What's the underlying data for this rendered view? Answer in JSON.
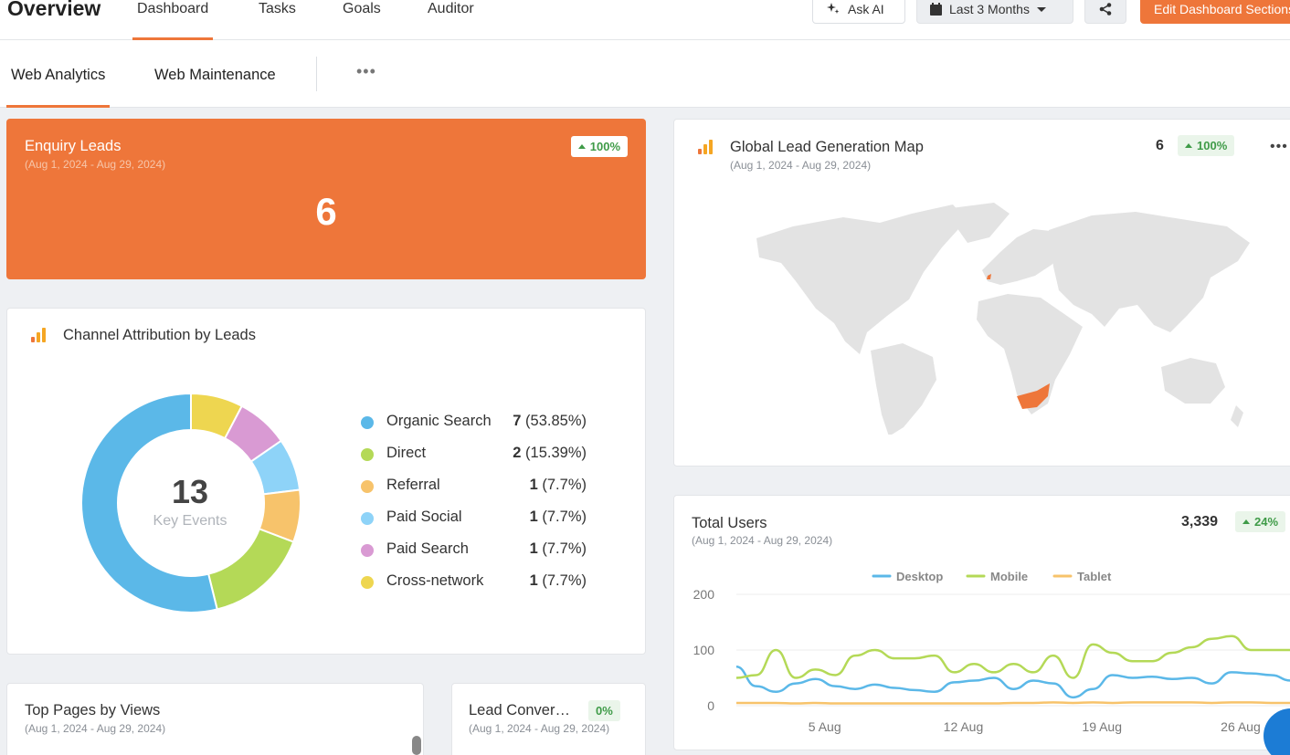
{
  "header": {
    "title": "Overview",
    "tabs": [
      {
        "label": "Dashboard",
        "active": true
      },
      {
        "label": "Tasks",
        "active": false
      },
      {
        "label": "Goals",
        "active": false
      },
      {
        "label": "Auditor",
        "active": false
      }
    ],
    "ask_ai": "Ask AI",
    "date_range": "Last 3 Months",
    "edit_label": "Edit Dashboard Sections"
  },
  "subtabs": [
    {
      "label": "Web Analytics",
      "active": true
    },
    {
      "label": "Web Maintenance",
      "active": false
    }
  ],
  "enquiry": {
    "title": "Enquiry Leads",
    "range": "(Aug 1, 2024 - Aug 29, 2024)",
    "value": "6",
    "change": "100%"
  },
  "channel": {
    "title": "Channel Attribution by Leads",
    "total": "13",
    "total_label": "Key Events"
  },
  "map": {
    "title": "Global Lead Generation Map",
    "range": "(Aug 1, 2024 - Aug 29, 2024)",
    "value": "6",
    "change": "100%"
  },
  "users": {
    "title": "Total Users",
    "range": "(Aug 1, 2024 - Aug 29, 2024)",
    "value": "3,339",
    "change": "24%"
  },
  "top_pages": {
    "title": "Top Pages by Views",
    "range": "(Aug 1, 2024 - Aug 29, 2024)"
  },
  "lead_conv": {
    "title": "Lead Conver…",
    "range": "(Aug 1, 2024 - Aug 29, 2024)",
    "change": "0%"
  },
  "colors": {
    "accent": "#ee763a",
    "up_green": "#3f9b48",
    "organic": "#5bb8e8",
    "direct": "#b4d957",
    "referral": "#f7c36b",
    "paid_social": "#8ed3f8",
    "paid_search": "#d99ad3",
    "cross_network": "#eed650"
  },
  "chart_data": [
    {
      "type": "pie",
      "series": [
        {
          "name": "Organic Search",
          "value": 7,
          "label": "(53.85%)"
        },
        {
          "name": "Direct",
          "value": 2,
          "label": "(15.39%)"
        },
        {
          "name": "Referral",
          "value": 1,
          "label": "(7.7%)"
        },
        {
          "name": "Paid Social",
          "value": 1,
          "label": "(7.7%)"
        },
        {
          "name": "Paid Search",
          "value": 1,
          "label": "(7.7%)"
        },
        {
          "name": "Cross-network",
          "value": 1,
          "label": "(7.7%)"
        }
      ]
    },
    {
      "type": "line",
      "x": [
        "Aug 1",
        "Aug 2",
        "Aug 3",
        "Aug 4",
        "Aug 5",
        "Aug 6",
        "Aug 7",
        "Aug 8",
        "Aug 9",
        "Aug 10",
        "Aug 11",
        "Aug 12",
        "Aug 13",
        "Aug 14",
        "Aug 15",
        "Aug 16",
        "Aug 17",
        "Aug 18",
        "Aug 19",
        "Aug 20",
        "Aug 21",
        "Aug 22",
        "Aug 23",
        "Aug 24",
        "Aug 25",
        "Aug 26",
        "Aug 27",
        "Aug 28",
        "Aug 29"
      ],
      "xticks": [
        "5 Aug",
        "12 Aug",
        "19 Aug",
        "26 Aug"
      ],
      "yticks": [
        "0",
        "100",
        "200"
      ],
      "ylim": [
        0,
        200
      ],
      "legend": "top",
      "series": [
        {
          "name": "Desktop",
          "values": [
            70,
            35,
            25,
            40,
            48,
            35,
            30,
            38,
            32,
            28,
            25,
            42,
            45,
            50,
            30,
            45,
            40,
            15,
            30,
            55,
            50,
            52,
            48,
            50,
            40,
            60,
            58,
            55,
            45
          ]
        },
        {
          "name": "Mobile",
          "values": [
            50,
            55,
            100,
            50,
            65,
            55,
            90,
            100,
            85,
            85,
            90,
            60,
            75,
            60,
            75,
            60,
            90,
            50,
            110,
            95,
            80,
            80,
            95,
            105,
            120,
            125,
            100,
            100,
            100
          ]
        },
        {
          "name": "Tablet",
          "values": [
            5,
            5,
            5,
            4,
            5,
            4,
            4,
            4,
            4,
            4,
            4,
            4,
            4,
            4,
            5,
            5,
            6,
            5,
            6,
            5,
            6,
            6,
            6,
            6,
            5,
            6,
            6,
            5,
            5
          ]
        }
      ]
    }
  ]
}
